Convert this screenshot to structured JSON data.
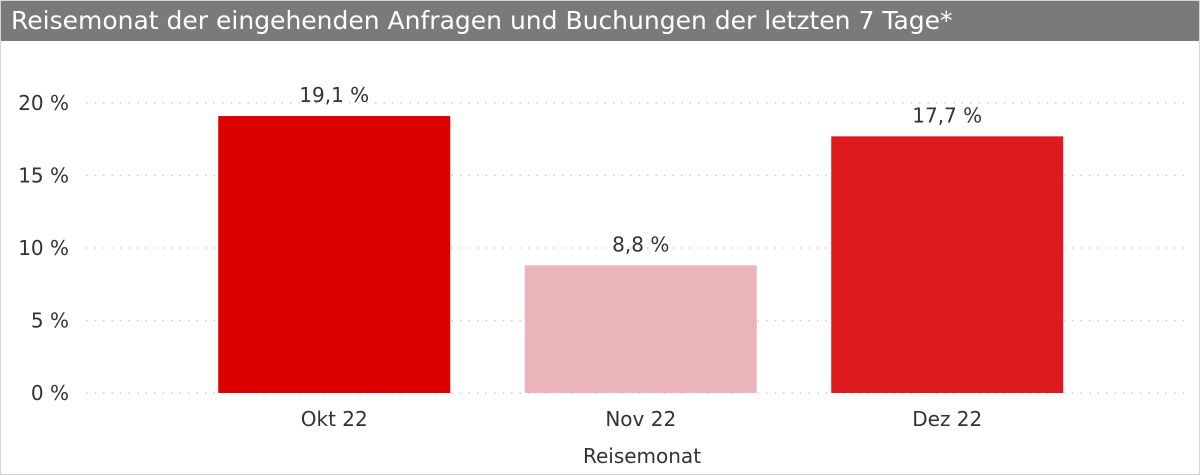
{
  "chart_data": {
    "type": "bar",
    "title": "Reisemonat der eingehenden Anfragen und Buchungen der letzten 7 Tage*",
    "xlabel": "Reisemonat",
    "ylabel": "",
    "categories": [
      "Okt 22",
      "Nov 22",
      "Dez 22"
    ],
    "values": [
      19.1,
      8.8,
      17.7
    ],
    "data_labels": [
      "19,1 %",
      "8,8 %",
      "17,7 %"
    ],
    "bar_colors": [
      "#dd0000",
      "#ebb4b8",
      "#dd1a1e"
    ],
    "ylim": [
      0,
      20
    ],
    "yticks": [
      0,
      5,
      10,
      15,
      20
    ],
    "ytick_labels": [
      "0 %",
      "5 %",
      "10 %",
      "15 %",
      "20 %"
    ],
    "grid": true,
    "legend": false
  },
  "colors": {
    "title_bar": "#7a7a7a",
    "gridline": "#c8c8c8"
  }
}
